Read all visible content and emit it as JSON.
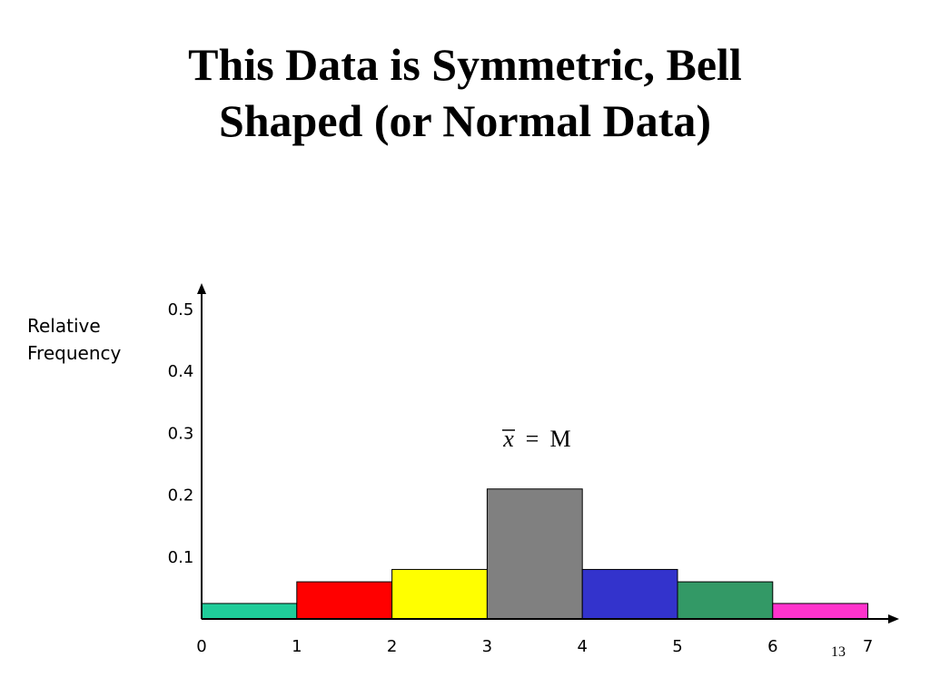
{
  "title": {
    "line1": "This Data is Symmetric, Bell",
    "line2": "Shaped (or Normal Data)"
  },
  "slide_number": "13",
  "chart_data": {
    "type": "bar",
    "title": "This Data is Symmetric, Bell Shaped (or Normal Data)",
    "xlabel": "",
    "ylabel": "Relative Frequency",
    "ylabel_lines": [
      "Relative",
      "Frequency"
    ],
    "bins": [
      [
        0,
        1
      ],
      [
        1,
        2
      ],
      [
        2,
        3
      ],
      [
        3,
        4
      ],
      [
        4,
        5
      ],
      [
        5,
        6
      ],
      [
        6,
        7
      ]
    ],
    "values": [
      0.025,
      0.06,
      0.08,
      0.21,
      0.08,
      0.06,
      0.025
    ],
    "colors": [
      "#1FCC99",
      "#FF0000",
      "#FFFF00",
      "#808080",
      "#3333CC",
      "#339966",
      "#FF33CC"
    ],
    "xticks": [
      "0",
      "1",
      "2",
      "3",
      "4",
      "5",
      "6",
      "7"
    ],
    "yticks": [
      "0.5",
      "0.4",
      "0.3",
      "0.2",
      "0.1"
    ],
    "ylim": [
      0,
      0.5
    ],
    "xlim": [
      0,
      7
    ],
    "grid": false,
    "annotation": {
      "x_symbol": "x",
      "operator": "=",
      "median_symbol": "M"
    }
  }
}
